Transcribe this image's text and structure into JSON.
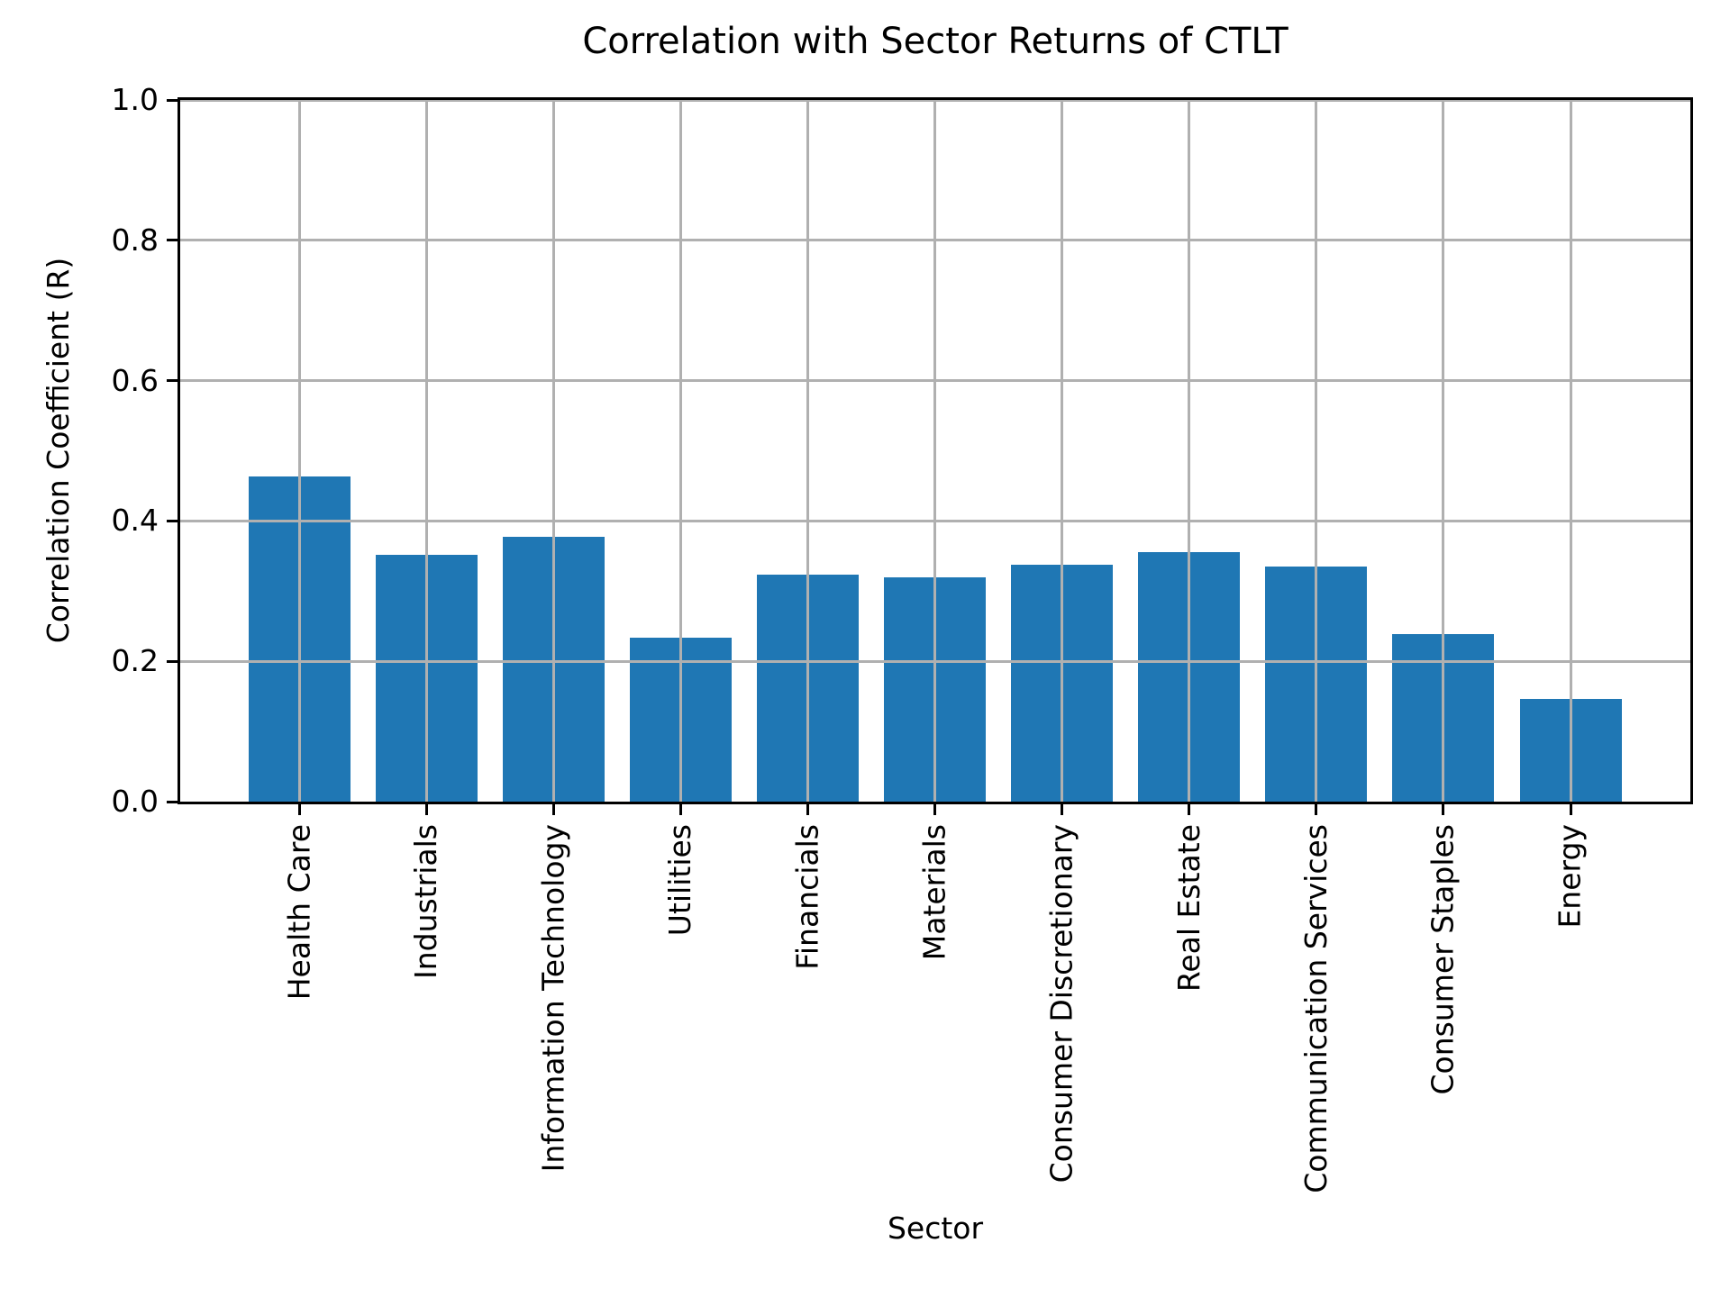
{
  "chart_data": {
    "type": "bar",
    "title": "Correlation with Sector Returns of CTLT",
    "xlabel": "Sector",
    "ylabel": "Correlation Coefficient (R)",
    "categories": [
      "Health Care",
      "Industrials",
      "Information Technology",
      "Utilities",
      "Financials",
      "Materials",
      "Consumer Discretionary",
      "Real Estate",
      "Communication Services",
      "Consumer Staples",
      "Energy"
    ],
    "values": [
      0.464,
      0.352,
      0.377,
      0.234,
      0.323,
      0.32,
      0.338,
      0.355,
      0.335,
      0.239,
      0.146
    ],
    "ylim": [
      0.0,
      1.0
    ],
    "yticklabels": [
      "0.0",
      "0.2",
      "0.4",
      "0.6",
      "0.8",
      "1.0"
    ],
    "grid": true,
    "legend_position": "none",
    "colors": {
      "bar": "#1f77b4",
      "grid": "#b0b0b0",
      "spine": "#000000",
      "background": "#ffffff",
      "text": "#000000"
    }
  }
}
